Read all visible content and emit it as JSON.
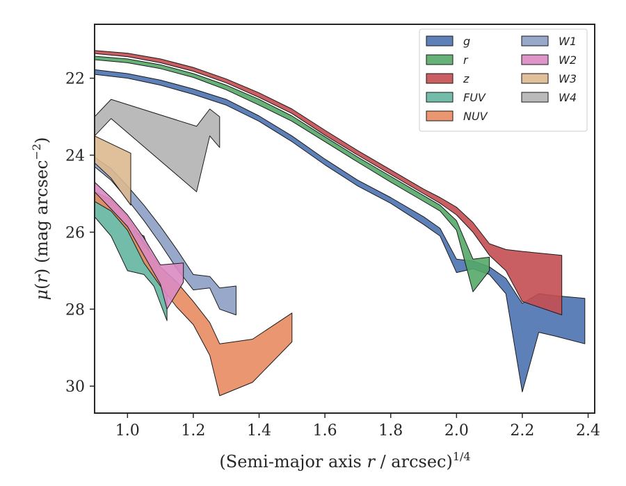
{
  "chart_data": {
    "type": "area",
    "xlabel": "(Semi-major axis r / arcsec)^1/4",
    "ylabel": "μ(r) (mag arcsec^−2)",
    "xlim": [
      0.9,
      2.42
    ],
    "ylim": [
      30.7,
      20.6
    ],
    "y_inverted": true,
    "grid": false,
    "legend_position": "top-right",
    "x_ticks": [
      "1.0",
      "1.2",
      "1.4",
      "1.6",
      "1.8",
      "2.0",
      "2.2",
      "2.4"
    ],
    "y_ticks": [
      "22",
      "24",
      "26",
      "28",
      "30"
    ],
    "series": [
      {
        "name": "g",
        "color": "#4c72b0",
        "upper": [
          [
            0.9,
            21.78
          ],
          [
            1.0,
            21.88
          ],
          [
            1.1,
            22.05
          ],
          [
            1.2,
            22.28
          ],
          [
            1.3,
            22.55
          ],
          [
            1.4,
            22.98
          ],
          [
            1.5,
            23.5
          ],
          [
            1.6,
            24.1
          ],
          [
            1.7,
            24.65
          ],
          [
            1.8,
            25.1
          ],
          [
            1.9,
            25.6
          ],
          [
            1.95,
            25.9
          ],
          [
            2.0,
            26.7
          ],
          [
            2.05,
            26.75
          ],
          [
            2.1,
            26.9
          ],
          [
            2.15,
            27.2
          ],
          [
            2.2,
            27.85
          ],
          [
            2.25,
            27.6
          ],
          [
            2.3,
            27.65
          ],
          [
            2.39,
            27.72
          ]
        ],
        "lower": [
          [
            0.9,
            21.9
          ],
          [
            1.0,
            22.0
          ],
          [
            1.1,
            22.18
          ],
          [
            1.2,
            22.42
          ],
          [
            1.3,
            22.7
          ],
          [
            1.4,
            23.12
          ],
          [
            1.5,
            23.65
          ],
          [
            1.6,
            24.25
          ],
          [
            1.7,
            24.8
          ],
          [
            1.8,
            25.25
          ],
          [
            1.9,
            25.8
          ],
          [
            1.95,
            26.1
          ],
          [
            2.0,
            27.05
          ],
          [
            2.05,
            26.95
          ],
          [
            2.1,
            27.1
          ],
          [
            2.15,
            27.6
          ],
          [
            2.2,
            30.15
          ],
          [
            2.25,
            28.6
          ],
          [
            2.3,
            28.7
          ],
          [
            2.39,
            28.9
          ]
        ]
      },
      {
        "name": "r",
        "color": "#55a868",
        "upper": [
          [
            0.9,
            21.43
          ],
          [
            1.0,
            21.5
          ],
          [
            1.1,
            21.65
          ],
          [
            1.2,
            21.88
          ],
          [
            1.3,
            22.18
          ],
          [
            1.4,
            22.55
          ],
          [
            1.5,
            22.98
          ],
          [
            1.6,
            23.52
          ],
          [
            1.7,
            24.05
          ],
          [
            1.8,
            24.55
          ],
          [
            1.9,
            25.05
          ],
          [
            1.95,
            25.3
          ],
          [
            2.0,
            25.7
          ],
          [
            2.05,
            26.7
          ],
          [
            2.1,
            26.65
          ]
        ],
        "lower": [
          [
            0.9,
            21.52
          ],
          [
            1.0,
            21.6
          ],
          [
            1.1,
            21.75
          ],
          [
            1.2,
            21.98
          ],
          [
            1.3,
            22.3
          ],
          [
            1.4,
            22.7
          ],
          [
            1.5,
            23.12
          ],
          [
            1.6,
            23.65
          ],
          [
            1.7,
            24.18
          ],
          [
            1.8,
            24.7
          ],
          [
            1.9,
            25.2
          ],
          [
            1.95,
            25.45
          ],
          [
            2.0,
            25.95
          ],
          [
            2.05,
            27.55
          ],
          [
            2.1,
            27.0
          ]
        ]
      },
      {
        "name": "z",
        "color": "#c44e52",
        "upper": [
          [
            0.9,
            21.28
          ],
          [
            1.0,
            21.35
          ],
          [
            1.1,
            21.5
          ],
          [
            1.2,
            21.72
          ],
          [
            1.3,
            22.02
          ],
          [
            1.4,
            22.38
          ],
          [
            1.5,
            22.8
          ],
          [
            1.6,
            23.35
          ],
          [
            1.7,
            23.88
          ],
          [
            1.8,
            24.38
          ],
          [
            1.9,
            24.88
          ],
          [
            1.95,
            25.1
          ],
          [
            2.0,
            25.35
          ],
          [
            2.05,
            25.75
          ],
          [
            2.1,
            26.3
          ],
          [
            2.15,
            26.45
          ],
          [
            2.2,
            26.5
          ],
          [
            2.32,
            26.6
          ]
        ],
        "lower": [
          [
            0.9,
            21.36
          ],
          [
            1.0,
            21.44
          ],
          [
            1.1,
            21.6
          ],
          [
            1.2,
            21.82
          ],
          [
            1.3,
            22.12
          ],
          [
            1.4,
            22.5
          ],
          [
            1.5,
            22.92
          ],
          [
            1.6,
            23.48
          ],
          [
            1.7,
            24.0
          ],
          [
            1.8,
            24.5
          ],
          [
            1.9,
            25.0
          ],
          [
            1.95,
            25.25
          ],
          [
            2.0,
            25.55
          ],
          [
            2.05,
            26.0
          ],
          [
            2.1,
            26.6
          ],
          [
            2.15,
            27.0
          ],
          [
            2.2,
            27.8
          ],
          [
            2.32,
            28.15
          ]
        ]
      },
      {
        "name": "FUV",
        "color": "#64b5a0",
        "upper": [
          [
            0.9,
            25.0
          ],
          [
            0.95,
            25.2
          ],
          [
            1.0,
            25.9
          ],
          [
            1.05,
            26.1
          ],
          [
            1.08,
            26.8
          ],
          [
            1.12,
            27.6
          ]
        ],
        "lower": [
          [
            0.9,
            25.6
          ],
          [
            0.95,
            26.1
          ],
          [
            1.0,
            27.0
          ],
          [
            1.05,
            27.1
          ],
          [
            1.08,
            27.4
          ],
          [
            1.12,
            28.3
          ]
        ]
      },
      {
        "name": "NUV",
        "color": "#e88b60",
        "upper": [
          [
            0.9,
            24.95
          ],
          [
            0.95,
            25.15
          ],
          [
            1.0,
            25.6
          ],
          [
            1.05,
            26.3
          ],
          [
            1.1,
            26.9
          ],
          [
            1.15,
            27.3
          ],
          [
            1.2,
            27.8
          ],
          [
            1.25,
            28.35
          ],
          [
            1.28,
            28.9
          ],
          [
            1.38,
            28.78
          ],
          [
            1.5,
            28.1
          ]
        ],
        "lower": [
          [
            0.9,
            25.2
          ],
          [
            0.95,
            25.45
          ],
          [
            1.0,
            25.95
          ],
          [
            1.05,
            26.8
          ],
          [
            1.1,
            27.4
          ],
          [
            1.15,
            27.95
          ],
          [
            1.2,
            28.4
          ],
          [
            1.25,
            29.2
          ],
          [
            1.28,
            30.25
          ],
          [
            1.38,
            29.9
          ],
          [
            1.5,
            28.85
          ]
        ]
      },
      {
        "name": "W1",
        "color": "#8c9fc4",
        "upper": [
          [
            0.9,
            24.05
          ],
          [
            0.95,
            24.35
          ],
          [
            1.0,
            24.8
          ],
          [
            1.05,
            25.3
          ],
          [
            1.1,
            25.85
          ],
          [
            1.15,
            26.45
          ],
          [
            1.2,
            27.1
          ],
          [
            1.25,
            27.15
          ],
          [
            1.28,
            27.45
          ],
          [
            1.33,
            27.4
          ]
        ],
        "lower": [
          [
            0.9,
            24.3
          ],
          [
            0.95,
            24.65
          ],
          [
            1.0,
            25.15
          ],
          [
            1.05,
            25.7
          ],
          [
            1.1,
            26.3
          ],
          [
            1.15,
            26.95
          ],
          [
            1.2,
            27.5
          ],
          [
            1.25,
            27.45
          ],
          [
            1.28,
            28.0
          ],
          [
            1.33,
            28.15
          ]
        ]
      },
      {
        "name": "W2",
        "color": "#da8bc3",
        "upper": [
          [
            0.9,
            24.7
          ],
          [
            0.95,
            25.1
          ],
          [
            1.0,
            25.55
          ],
          [
            1.05,
            26.15
          ],
          [
            1.1,
            26.85
          ],
          [
            1.17,
            26.8
          ]
        ],
        "lower": [
          [
            0.9,
            24.95
          ],
          [
            0.95,
            25.4
          ],
          [
            1.0,
            25.85
          ],
          [
            1.05,
            26.6
          ],
          [
            1.1,
            27.35
          ],
          [
            1.12,
            28.0
          ],
          [
            1.17,
            27.3
          ]
        ]
      },
      {
        "name": "W3",
        "color": "#ddb990",
        "upper": [
          [
            0.9,
            23.5
          ],
          [
            1.01,
            23.95
          ]
        ],
        "lower": [
          [
            0.9,
            24.2
          ],
          [
            0.95,
            24.6
          ],
          [
            1.01,
            25.3
          ]
        ]
      },
      {
        "name": "W4",
        "color": "#b3b3b3",
        "upper": [
          [
            0.9,
            23.0
          ],
          [
            0.95,
            22.55
          ],
          [
            1.21,
            23.25
          ],
          [
            1.25,
            22.8
          ],
          [
            1.28,
            23.0
          ]
        ],
        "lower": [
          [
            0.9,
            23.5
          ],
          [
            0.95,
            23.05
          ],
          [
            1.21,
            24.95
          ],
          [
            1.25,
            23.5
          ],
          [
            1.28,
            23.8
          ]
        ]
      }
    ]
  }
}
